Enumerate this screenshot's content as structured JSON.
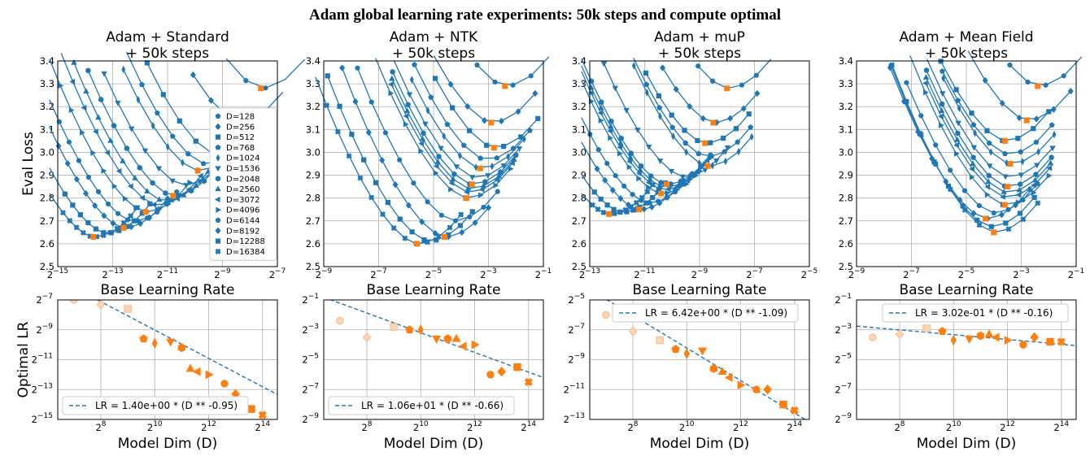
{
  "title": "Adam global learning rate experiments: 50k steps and compute optimal",
  "colors": {
    "series": "#1f77b4",
    "optimum": "#ff7f0e",
    "fit": "#1f77b4"
  },
  "chart_data": [
    {
      "type": "line",
      "title_lines": [
        "Adam + Standard",
        "+ 50k steps"
      ],
      "xlabel": "Base Learning Rate",
      "ylabel": "Eval Loss",
      "xscale": "log2",
      "xlim_exp": [
        -15,
        -7
      ],
      "xticks_exp": [
        -15,
        -13,
        -11,
        -9,
        -7
      ],
      "ylim": [
        2.5,
        3.4
      ],
      "yticks": [
        "2.5",
        "2.6",
        "2.7",
        "2.8",
        "2.9",
        "3.0",
        "3.1",
        "3.2",
        "3.3",
        "3.4"
      ],
      "legend": {
        "placement": "center-right",
        "entries": [
          "D=128",
          "D=256",
          "D=512",
          "D=768",
          "D=1024",
          "D=1536",
          "D=2048",
          "D=2560",
          "D=3072",
          "D=4096",
          "D=6144",
          "D=8192",
          "D=12288",
          "D=16384"
        ]
      },
      "optimal_points": [
        {
          "D": 128,
          "lr_exp": -7.6,
          "loss": 3.28
        },
        {
          "D": 512,
          "lr_exp": -9.2,
          "loss": 2.99
        },
        {
          "D": 1024,
          "lr_exp": -9.9,
          "loss": 2.92
        },
        {
          "D": 2048,
          "lr_exp": -10.8,
          "loss": 2.81
        },
        {
          "D": 4096,
          "lr_exp": -11.8,
          "loss": 2.74
        },
        {
          "D": 8192,
          "lr_exp": -12.6,
          "loss": 2.67
        },
        {
          "D": 16384,
          "lr_exp": -13.7,
          "loss": 2.63
        }
      ]
    },
    {
      "type": "line",
      "title_lines": [
        "Adam + NTK",
        "+ 50k steps"
      ],
      "xlabel": "Base Learning Rate",
      "ylabel": "",
      "xscale": "log2",
      "xlim_exp": [
        -9,
        -1
      ],
      "xticks_exp": [
        -9,
        -7,
        -5,
        -3,
        -1
      ],
      "ylim": [
        2.5,
        3.4
      ],
      "yticks": [
        "2.5",
        "2.6",
        "2.7",
        "2.8",
        "2.9",
        "3.0",
        "3.1",
        "3.2",
        "3.3",
        "3.4"
      ],
      "optimal_points": [
        {
          "D": 128,
          "lr_exp": -2.4,
          "loss": 3.29
        },
        {
          "D": 256,
          "lr_exp": -2.9,
          "loss": 3.13
        },
        {
          "D": 512,
          "lr_exp": -2.8,
          "loss": 3.02
        },
        {
          "D": 1024,
          "lr_exp": -3.3,
          "loss": 2.93
        },
        {
          "D": 2048,
          "lr_exp": -3.6,
          "loss": 2.86
        },
        {
          "D": 4096,
          "lr_exp": -3.8,
          "loss": 2.8
        },
        {
          "D": 8192,
          "lr_exp": -4.6,
          "loss": 2.63
        },
        {
          "D": 16384,
          "lr_exp": -5.6,
          "loss": 2.6
        }
      ]
    },
    {
      "type": "line",
      "title_lines": [
        "Adam + muP",
        "+ 50k steps"
      ],
      "xlabel": "Base Learning Rate",
      "ylabel": "",
      "xscale": "log2",
      "xlim_exp": [
        -13,
        -5
      ],
      "xticks_exp": [
        -13,
        -11,
        -9,
        -7,
        -5
      ],
      "ylim": [
        2.5,
        3.4
      ],
      "yticks": [
        "2.5",
        "2.6",
        "2.7",
        "2.8",
        "2.9",
        "3.0",
        "3.1",
        "3.2",
        "3.3",
        "3.4"
      ],
      "optimal_points": [
        {
          "D": 128,
          "lr_exp": -8.0,
          "loss": 3.28
        },
        {
          "D": 256,
          "lr_exp": -8.5,
          "loss": 3.13
        },
        {
          "D": 512,
          "lr_exp": -8.8,
          "loss": 3.04
        },
        {
          "D": 1024,
          "lr_exp": -8.7,
          "loss": 2.94
        },
        {
          "D": 2048,
          "lr_exp": -10.2,
          "loss": 2.86
        },
        {
          "D": 4096,
          "lr_exp": -10.4,
          "loss": 2.82
        },
        {
          "D": 8192,
          "lr_exp": -11.2,
          "loss": 2.75
        },
        {
          "D": 16384,
          "lr_exp": -12.3,
          "loss": 2.73
        }
      ]
    },
    {
      "type": "line",
      "title_lines": [
        "Adam + Mean Field",
        "+ 50k steps"
      ],
      "xlabel": "Base Learning Rate",
      "ylabel": "",
      "xscale": "log2",
      "xlim_exp": [
        -9,
        -1
      ],
      "xticks_exp": [
        -9,
        -7,
        -5,
        -3,
        -1
      ],
      "ylim": [
        2.5,
        3.4
      ],
      "yticks": [
        "2.5",
        "2.6",
        "2.7",
        "2.8",
        "2.9",
        "3.0",
        "3.1",
        "3.2",
        "3.3",
        "3.4"
      ],
      "optimal_points": [
        {
          "D": 128,
          "lr_exp": -2.4,
          "loss": 3.29
        },
        {
          "D": 256,
          "lr_exp": -2.8,
          "loss": 3.14
        },
        {
          "D": 512,
          "lr_exp": -3.6,
          "loss": 3.05
        },
        {
          "D": 1024,
          "lr_exp": -3.4,
          "loss": 2.95
        },
        {
          "D": 2048,
          "lr_exp": -3.5,
          "loss": 2.85
        },
        {
          "D": 4096,
          "lr_exp": -3.6,
          "loss": 2.77
        },
        {
          "D": 8192,
          "lr_exp": -4.3,
          "loss": 2.71
        },
        {
          "D": 16384,
          "lr_exp": -4.0,
          "loss": 2.65
        }
      ]
    },
    {
      "type": "scatter",
      "xlabel": "Model Dim (D)",
      "ylabel": "Optimal LR",
      "xscale": "log2",
      "yscale": "log2",
      "xticks_exp": [
        8,
        10,
        12,
        14
      ],
      "yticks_exp": [
        -15,
        -13,
        -11,
        -9,
        -7
      ],
      "ylim_exp": [
        -15,
        -7
      ],
      "fit_label": "LR = 1.40e+00 * (D ** -0.95)",
      "fit": {
        "a": 1.4,
        "b": -0.95
      },
      "legend_placement": "lower-left",
      "points": [
        {
          "D": 128,
          "lr_exp": -7.0
        },
        {
          "D": 256,
          "lr_exp": -7.3
        },
        {
          "D": 512,
          "lr_exp": -7.6
        },
        {
          "D": 768,
          "lr_exp": -9.6
        },
        {
          "D": 1024,
          "lr_exp": -9.9
        },
        {
          "D": 1536,
          "lr_exp": -9.8
        },
        {
          "D": 2048,
          "lr_exp": -10.2
        },
        {
          "D": 2560,
          "lr_exp": -11.6
        },
        {
          "D": 3072,
          "lr_exp": -11.8
        },
        {
          "D": 4096,
          "lr_exp": -12.0
        },
        {
          "D": 6144,
          "lr_exp": -12.6
        },
        {
          "D": 8192,
          "lr_exp": -13.3
        },
        {
          "D": 12288,
          "lr_exp": -14.3
        },
        {
          "D": 16384,
          "lr_exp": -14.7
        }
      ]
    },
    {
      "type": "scatter",
      "xlabel": "Model Dim (D)",
      "ylabel": "",
      "xscale": "log2",
      "yscale": "log2",
      "xticks_exp": [
        8,
        10,
        12,
        14
      ],
      "yticks_exp": [
        -9,
        -7,
        -5,
        -3,
        -1
      ],
      "ylim_exp": [
        -9,
        -1
      ],
      "fit_label": "LR = 1.06e+01 * (D ** -0.66)",
      "fit": {
        "a": 10.6,
        "b": -0.66
      },
      "legend_placement": "lower-left",
      "points": [
        {
          "D": 128,
          "lr_exp": -2.4
        },
        {
          "D": 256,
          "lr_exp": -3.5
        },
        {
          "D": 512,
          "lr_exp": -2.8
        },
        {
          "D": 768,
          "lr_exp": -3.0
        },
        {
          "D": 1024,
          "lr_exp": -3.0
        },
        {
          "D": 1536,
          "lr_exp": -3.6
        },
        {
          "D": 2048,
          "lr_exp": -3.6
        },
        {
          "D": 2560,
          "lr_exp": -3.6
        },
        {
          "D": 3072,
          "lr_exp": -4.1
        },
        {
          "D": 4096,
          "lr_exp": -4.0
        },
        {
          "D": 6144,
          "lr_exp": -6.0
        },
        {
          "D": 8192,
          "lr_exp": -5.8
        },
        {
          "D": 12288,
          "lr_exp": -5.5
        },
        {
          "D": 16384,
          "lr_exp": -6.5
        }
      ]
    },
    {
      "type": "scatter",
      "xlabel": "Model Dim (D)",
      "ylabel": "",
      "xscale": "log2",
      "yscale": "log2",
      "xticks_exp": [
        8,
        10,
        12,
        14
      ],
      "yticks_exp": [
        -13,
        -11,
        -9,
        -7,
        -5
      ],
      "ylim_exp": [
        -13,
        -5
      ],
      "fit_label": "LR = 6.42e+00 * (D ** -1.09)",
      "fit": {
        "a": 6.42,
        "b": -1.09
      },
      "legend_placement": "upper-left",
      "points": [
        {
          "D": 128,
          "lr_exp": -6.0
        },
        {
          "D": 256,
          "lr_exp": -7.1
        },
        {
          "D": 512,
          "lr_exp": -7.7
        },
        {
          "D": 768,
          "lr_exp": -8.3
        },
        {
          "D": 1024,
          "lr_exp": -8.6
        },
        {
          "D": 1536,
          "lr_exp": -8.4
        },
        {
          "D": 2048,
          "lr_exp": -9.6
        },
        {
          "D": 2560,
          "lr_exp": -9.8
        },
        {
          "D": 3072,
          "lr_exp": -10.2
        },
        {
          "D": 4096,
          "lr_exp": -10.7
        },
        {
          "D": 6144,
          "lr_exp": -11.0
        },
        {
          "D": 8192,
          "lr_exp": -11.0
        },
        {
          "D": 12288,
          "lr_exp": -12.0
        },
        {
          "D": 16384,
          "lr_exp": -12.4
        }
      ]
    },
    {
      "type": "scatter",
      "xlabel": "Model Dim (D)",
      "ylabel": "",
      "xscale": "log2",
      "yscale": "log2",
      "xticks_exp": [
        8,
        10,
        12,
        14
      ],
      "yticks_exp": [
        -9,
        -7,
        -5,
        -3,
        -1
      ],
      "ylim_exp": [
        -9,
        -1
      ],
      "fit_label": "LR = 3.02e-01 * (D ** -0.16)",
      "fit": {
        "a": 0.302,
        "b": -0.16
      },
      "legend_placement": "upper-right",
      "points": [
        {
          "D": 128,
          "lr_exp": -3.5
        },
        {
          "D": 256,
          "lr_exp": -3.3
        },
        {
          "D": 512,
          "lr_exp": -2.9
        },
        {
          "D": 768,
          "lr_exp": -3.1
        },
        {
          "D": 1024,
          "lr_exp": -3.7
        },
        {
          "D": 1536,
          "lr_exp": -3.6
        },
        {
          "D": 2048,
          "lr_exp": -3.4
        },
        {
          "D": 2560,
          "lr_exp": -3.3
        },
        {
          "D": 3072,
          "lr_exp": -3.5
        },
        {
          "D": 4096,
          "lr_exp": -3.7
        },
        {
          "D": 6144,
          "lr_exp": -4.0
        },
        {
          "D": 8192,
          "lr_exp": -3.5
        },
        {
          "D": 12288,
          "lr_exp": -3.8
        },
        {
          "D": 16384,
          "lr_exp": -3.8
        }
      ]
    }
  ]
}
